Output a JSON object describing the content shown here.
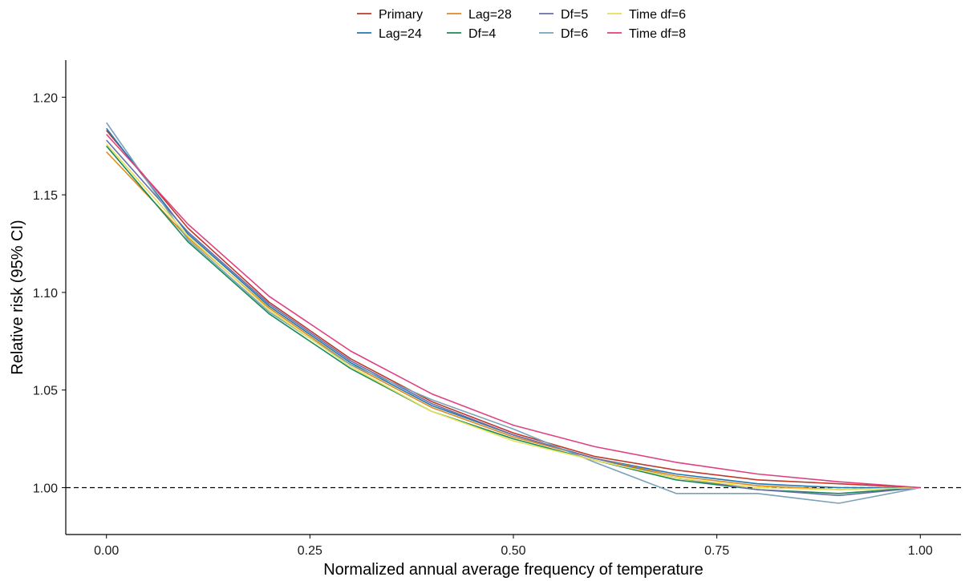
{
  "chart_data": {
    "type": "line",
    "title": "",
    "xlabel": "Normalized annual average frequency of temperature",
    "ylabel": "Relative risk (95% CI)",
    "xlim": [
      -0.05,
      1.05
    ],
    "ylim": [
      0.976,
      1.219
    ],
    "x_ticks": [
      "0.00",
      "0.25",
      "0.50",
      "0.75",
      "1.00"
    ],
    "y_ticks": [
      "1.00",
      "1.05",
      "1.10",
      "1.15",
      "1.20"
    ],
    "reference_line": 1.0,
    "grid": false,
    "legend_position": "top",
    "x": [
      0,
      0.1,
      0.2,
      0.3,
      0.4,
      0.5,
      0.6,
      0.7,
      0.8,
      0.9,
      1.0
    ],
    "series": [
      {
        "name": "Primary",
        "color": "#c0392b",
        "values": [
          1.183,
          1.133,
          1.095,
          1.066,
          1.044,
          1.028,
          1.016,
          1.009,
          1.004,
          1.002,
          1.0
        ]
      },
      {
        "name": "Lag=24",
        "color": "#1f78b4",
        "values": [
          1.184,
          1.13,
          1.093,
          1.064,
          1.042,
          1.027,
          1.015,
          1.007,
          1.002,
          1.0,
          1.0
        ]
      },
      {
        "name": "Lag=28",
        "color": "#e08a1e",
        "values": [
          1.172,
          1.128,
          1.092,
          1.063,
          1.041,
          1.026,
          1.015,
          1.006,
          1.001,
          0.999,
          1.0
        ]
      },
      {
        "name": "Df=4",
        "color": "#1b8a5a",
        "values": [
          1.175,
          1.126,
          1.089,
          1.061,
          1.039,
          1.025,
          1.014,
          1.004,
          0.999,
          0.997,
          1.0
        ]
      },
      {
        "name": "Df=5",
        "color": "#6a6fa8",
        "values": [
          1.178,
          1.131,
          1.094,
          1.065,
          1.043,
          1.027,
          1.015,
          1.005,
          0.999,
          0.996,
          1.0
        ]
      },
      {
        "name": "Df=6",
        "color": "#7aa2b8",
        "values": [
          1.187,
          1.127,
          1.09,
          1.063,
          1.045,
          1.03,
          1.013,
          0.997,
          0.997,
          0.992,
          1.0
        ]
      },
      {
        "name": "Time df=6",
        "color": "#e6e05a",
        "values": [
          1.176,
          1.129,
          1.091,
          1.062,
          1.039,
          1.024,
          1.014,
          1.005,
          1.0,
          0.999,
          1.0
        ]
      },
      {
        "name": "Time df=8",
        "color": "#e0407f",
        "values": [
          1.181,
          1.135,
          1.098,
          1.07,
          1.048,
          1.032,
          1.021,
          1.013,
          1.007,
          1.003,
          1.0
        ]
      }
    ]
  }
}
